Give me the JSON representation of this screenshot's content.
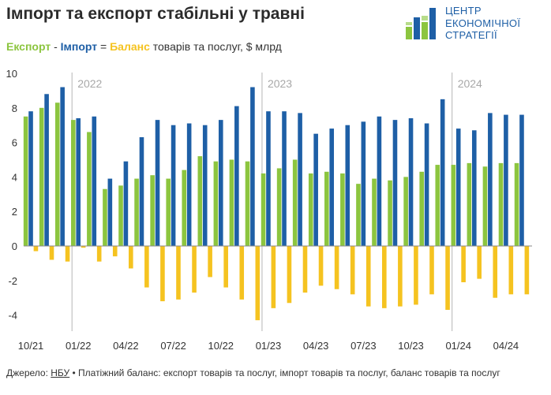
{
  "title": "Імпорт та експорт стабільні у травні",
  "subtitle": {
    "export_word": "Експорт",
    "sep1": " - ",
    "import_word": "Імпорт",
    "sep2": " = ",
    "balance_word": "Баланс",
    "rest": " товарів та послуг, $ млрд"
  },
  "logo": {
    "lines": [
      "ЦЕНТР",
      "ЕКОНОМІЧНОЇ",
      "СТРАТЕГІЇ"
    ],
    "icon": "bar-logo-icon"
  },
  "footer": {
    "prefix": "Джерело: ",
    "link": "НБУ",
    "rest": " • Платіжний баланс: експорт товарів та послуг, імпорт товарів та послуг, баланс товарів та послуг"
  },
  "colors": {
    "export": "#8cc53f",
    "import": "#1e5fa6",
    "balance": "#f5c320"
  },
  "chart_data": {
    "type": "bar",
    "categories": [
      "10/21",
      "11/21",
      "12/21",
      "01/22",
      "02/22",
      "03/22",
      "04/22",
      "05/22",
      "06/22",
      "07/22",
      "08/22",
      "09/22",
      "10/22",
      "11/22",
      "12/22",
      "01/23",
      "02/23",
      "03/23",
      "04/23",
      "05/23",
      "06/23",
      "07/23",
      "08/23",
      "09/23",
      "10/23",
      "11/23",
      "12/23",
      "01/24",
      "02/24",
      "03/24",
      "04/24",
      "05/24"
    ],
    "series": [
      {
        "name": "Експорт",
        "values": [
          7.5,
          8.0,
          8.3,
          7.3,
          6.6,
          3.3,
          3.5,
          3.9,
          4.1,
          3.9,
          4.4,
          5.2,
          4.9,
          5.0,
          4.9,
          4.2,
          4.5,
          5.0,
          4.2,
          4.3,
          4.2,
          3.6,
          3.9,
          3.8,
          4.0,
          4.3,
          4.7,
          4.7,
          4.8,
          4.6,
          4.8,
          4.8
        ]
      },
      {
        "name": "Імпорт",
        "values": [
          7.8,
          8.8,
          9.2,
          7.4,
          7.5,
          3.9,
          4.9,
          6.3,
          7.3,
          7.0,
          7.1,
          7.0,
          7.3,
          8.1,
          9.2,
          7.8,
          7.8,
          7.7,
          6.5,
          6.8,
          7.0,
          7.2,
          7.5,
          7.3,
          7.4,
          7.1,
          8.5,
          6.8,
          6.7,
          7.7,
          7.6,
          7.6
        ]
      },
      {
        "name": "Баланс",
        "values": [
          -0.3,
          -0.8,
          -0.9,
          -0.1,
          -0.9,
          -0.6,
          -1.3,
          -2.4,
          -3.2,
          -3.1,
          -2.7,
          -1.8,
          -2.4,
          -3.1,
          -4.3,
          -3.6,
          -3.3,
          -2.7,
          -2.3,
          -2.5,
          -2.8,
          -3.5,
          -3.6,
          -3.5,
          -3.4,
          -2.8,
          -3.7,
          -2.1,
          -1.9,
          -3.0,
          -2.8,
          -2.8
        ]
      }
    ],
    "ylim": [
      -5,
      10
    ],
    "yticks": [
      "-4",
      "-2",
      "0",
      "2",
      "4",
      "6",
      "8",
      "10"
    ],
    "xtick_labels": [
      {
        "index": 0,
        "label": "10/21"
      },
      {
        "index": 3,
        "label": "01/22"
      },
      {
        "index": 6,
        "label": "04/22"
      },
      {
        "index": 9,
        "label": "07/22"
      },
      {
        "index": 12,
        "label": "10/22"
      },
      {
        "index": 15,
        "label": "01/23"
      },
      {
        "index": 18,
        "label": "04/23"
      },
      {
        "index": 21,
        "label": "07/23"
      },
      {
        "index": 24,
        "label": "10/23"
      },
      {
        "index": 27,
        "label": "01/24"
      },
      {
        "index": 30,
        "label": "04/24"
      }
    ],
    "year_markers": [
      {
        "index": 3,
        "label": "2022"
      },
      {
        "index": 15,
        "label": "2023"
      },
      {
        "index": 27,
        "label": "2024"
      }
    ],
    "grid": false,
    "legend": "subtitle"
  }
}
